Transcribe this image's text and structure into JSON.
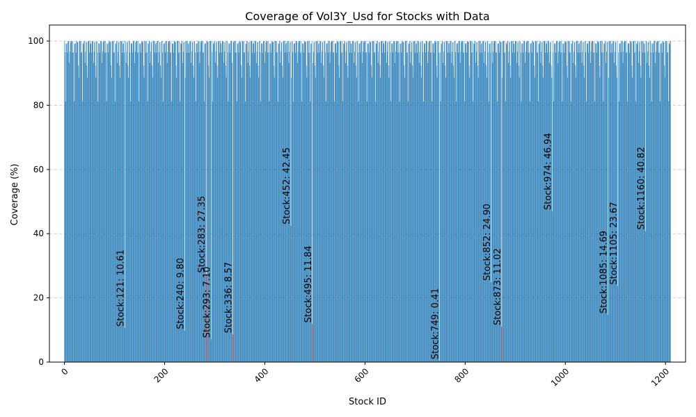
{
  "chart_data": {
    "type": "bar",
    "title": "Coverage of Vol3Y_Usd for Stocks with Data",
    "xlabel": "Stock ID",
    "ylabel": "Coverage (%)",
    "xlim": [
      -30,
      1240
    ],
    "ylim": [
      0,
      105
    ],
    "xticks": [
      0,
      200,
      400,
      600,
      800,
      1000,
      1200
    ],
    "yticks": [
      0,
      20,
      40,
      60,
      80,
      100
    ],
    "grid": {
      "y": true,
      "x": false,
      "style": "dashed"
    },
    "colors": {
      "normal": "#1f77b4",
      "highlight": "#d62728",
      "grid": "#bfbfbf"
    },
    "highlight_threshold": 50,
    "x_range": [
      0,
      1210
    ],
    "baseline_pattern": [
      100,
      99.3,
      96.4,
      100,
      99.6,
      88.6,
      100,
      96.5,
      99.1,
      100,
      93.2,
      99.8,
      100,
      96.4,
      81.2,
      99.4,
      100,
      96.7,
      92.4,
      100
    ],
    "low_coverage": [
      {
        "x": 121,
        "value": 10.61,
        "label": "Stock:121: 10.61"
      },
      {
        "x": 240,
        "value": 9.8,
        "label": "Stock:240: 9.80"
      },
      {
        "x": 283,
        "value": 27.35,
        "label": "Stock:283: 27.35"
      },
      {
        "x": 293,
        "value": 7.1,
        "label": "Stock:293: 7.10"
      },
      {
        "x": 336,
        "value": 8.57,
        "label": "Stock:336: 8.57"
      },
      {
        "x": 452,
        "value": 42.45,
        "label": "Stock:452: 42.45"
      },
      {
        "x": 495,
        "value": 11.84,
        "label": "Stock:495: 11.84"
      },
      {
        "x": 749,
        "value": 0.41,
        "label": "Stock:749: 0.41"
      },
      {
        "x": 852,
        "value": 24.9,
        "label": "Stock:852: 24.90"
      },
      {
        "x": 873,
        "value": 11.02,
        "label": "Stock:873: 11.02"
      },
      {
        "x": 974,
        "value": 46.94,
        "label": "Stock:974: 46.94"
      },
      {
        "x": 1085,
        "value": 14.69,
        "label": "Stock:1085: 14.69"
      },
      {
        "x": 1105,
        "value": 23.67,
        "label": "Stock:1105: 23.67"
      },
      {
        "x": 1160,
        "value": 40.82,
        "label": "Stock:1160: 40.82"
      }
    ]
  }
}
